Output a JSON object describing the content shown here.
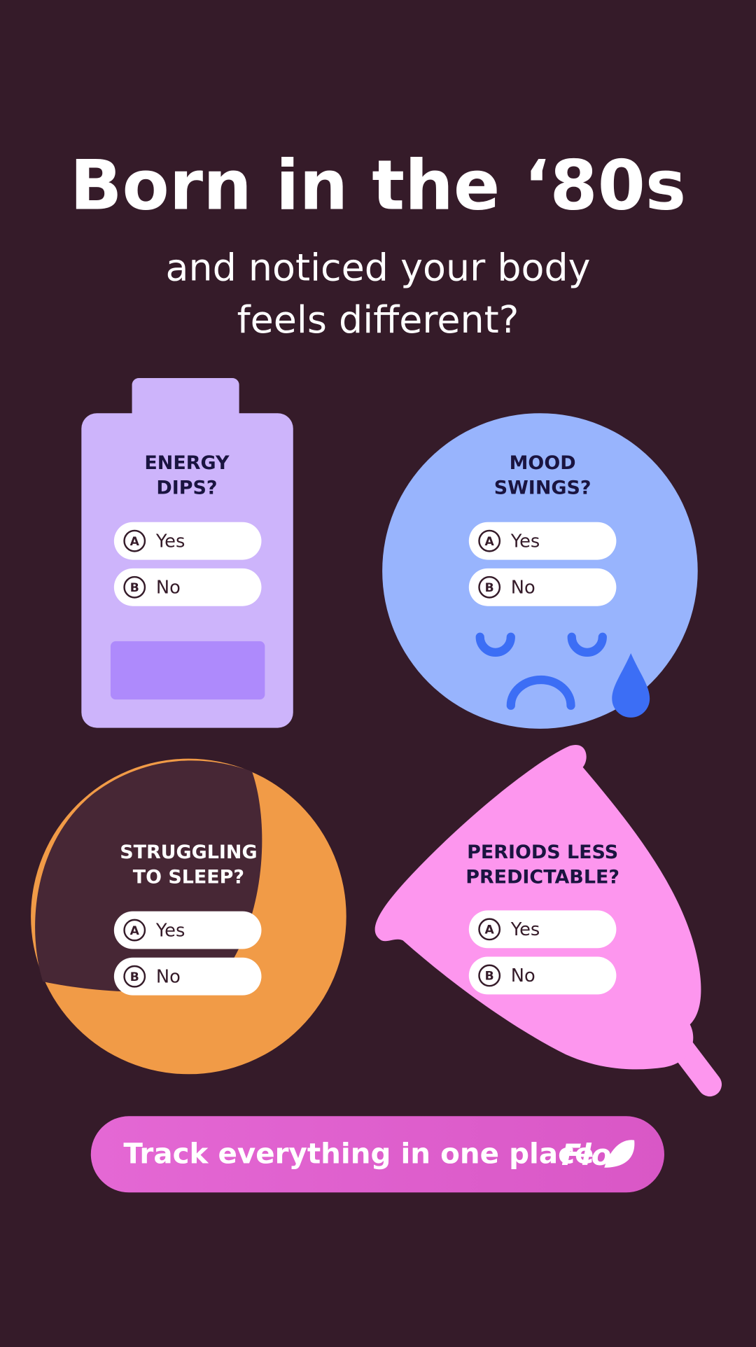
{
  "header": {
    "title": "Born in the ‘80s",
    "subtitle_lines": [
      "and noticed your body",
      "feels different?"
    ]
  },
  "cards": [
    {
      "question_lines": [
        "ENERGY",
        "DIPS?"
      ],
      "options": [
        {
          "letter": "A",
          "label": "Yes"
        },
        {
          "letter": "B",
          "label": "No"
        }
      ]
    },
    {
      "question_lines": [
        "MOOD",
        "SWINGS?"
      ],
      "options": [
        {
          "letter": "A",
          "label": "Yes"
        },
        {
          "letter": "B",
          "label": "No"
        }
      ]
    },
    {
      "question_lines": [
        "STRUGGLING",
        "TO SLEEP?"
      ],
      "options": [
        {
          "letter": "A",
          "label": "Yes"
        },
        {
          "letter": "B",
          "label": "No"
        }
      ]
    },
    {
      "question_lines": [
        "PERIODS LESS",
        "PREDICTABLE?"
      ],
      "options": [
        {
          "letter": "A",
          "label": "Yes"
        },
        {
          "letter": "B",
          "label": "No"
        }
      ]
    }
  ],
  "button": {
    "label": "Track everything in one place",
    "logo": "Flo"
  }
}
